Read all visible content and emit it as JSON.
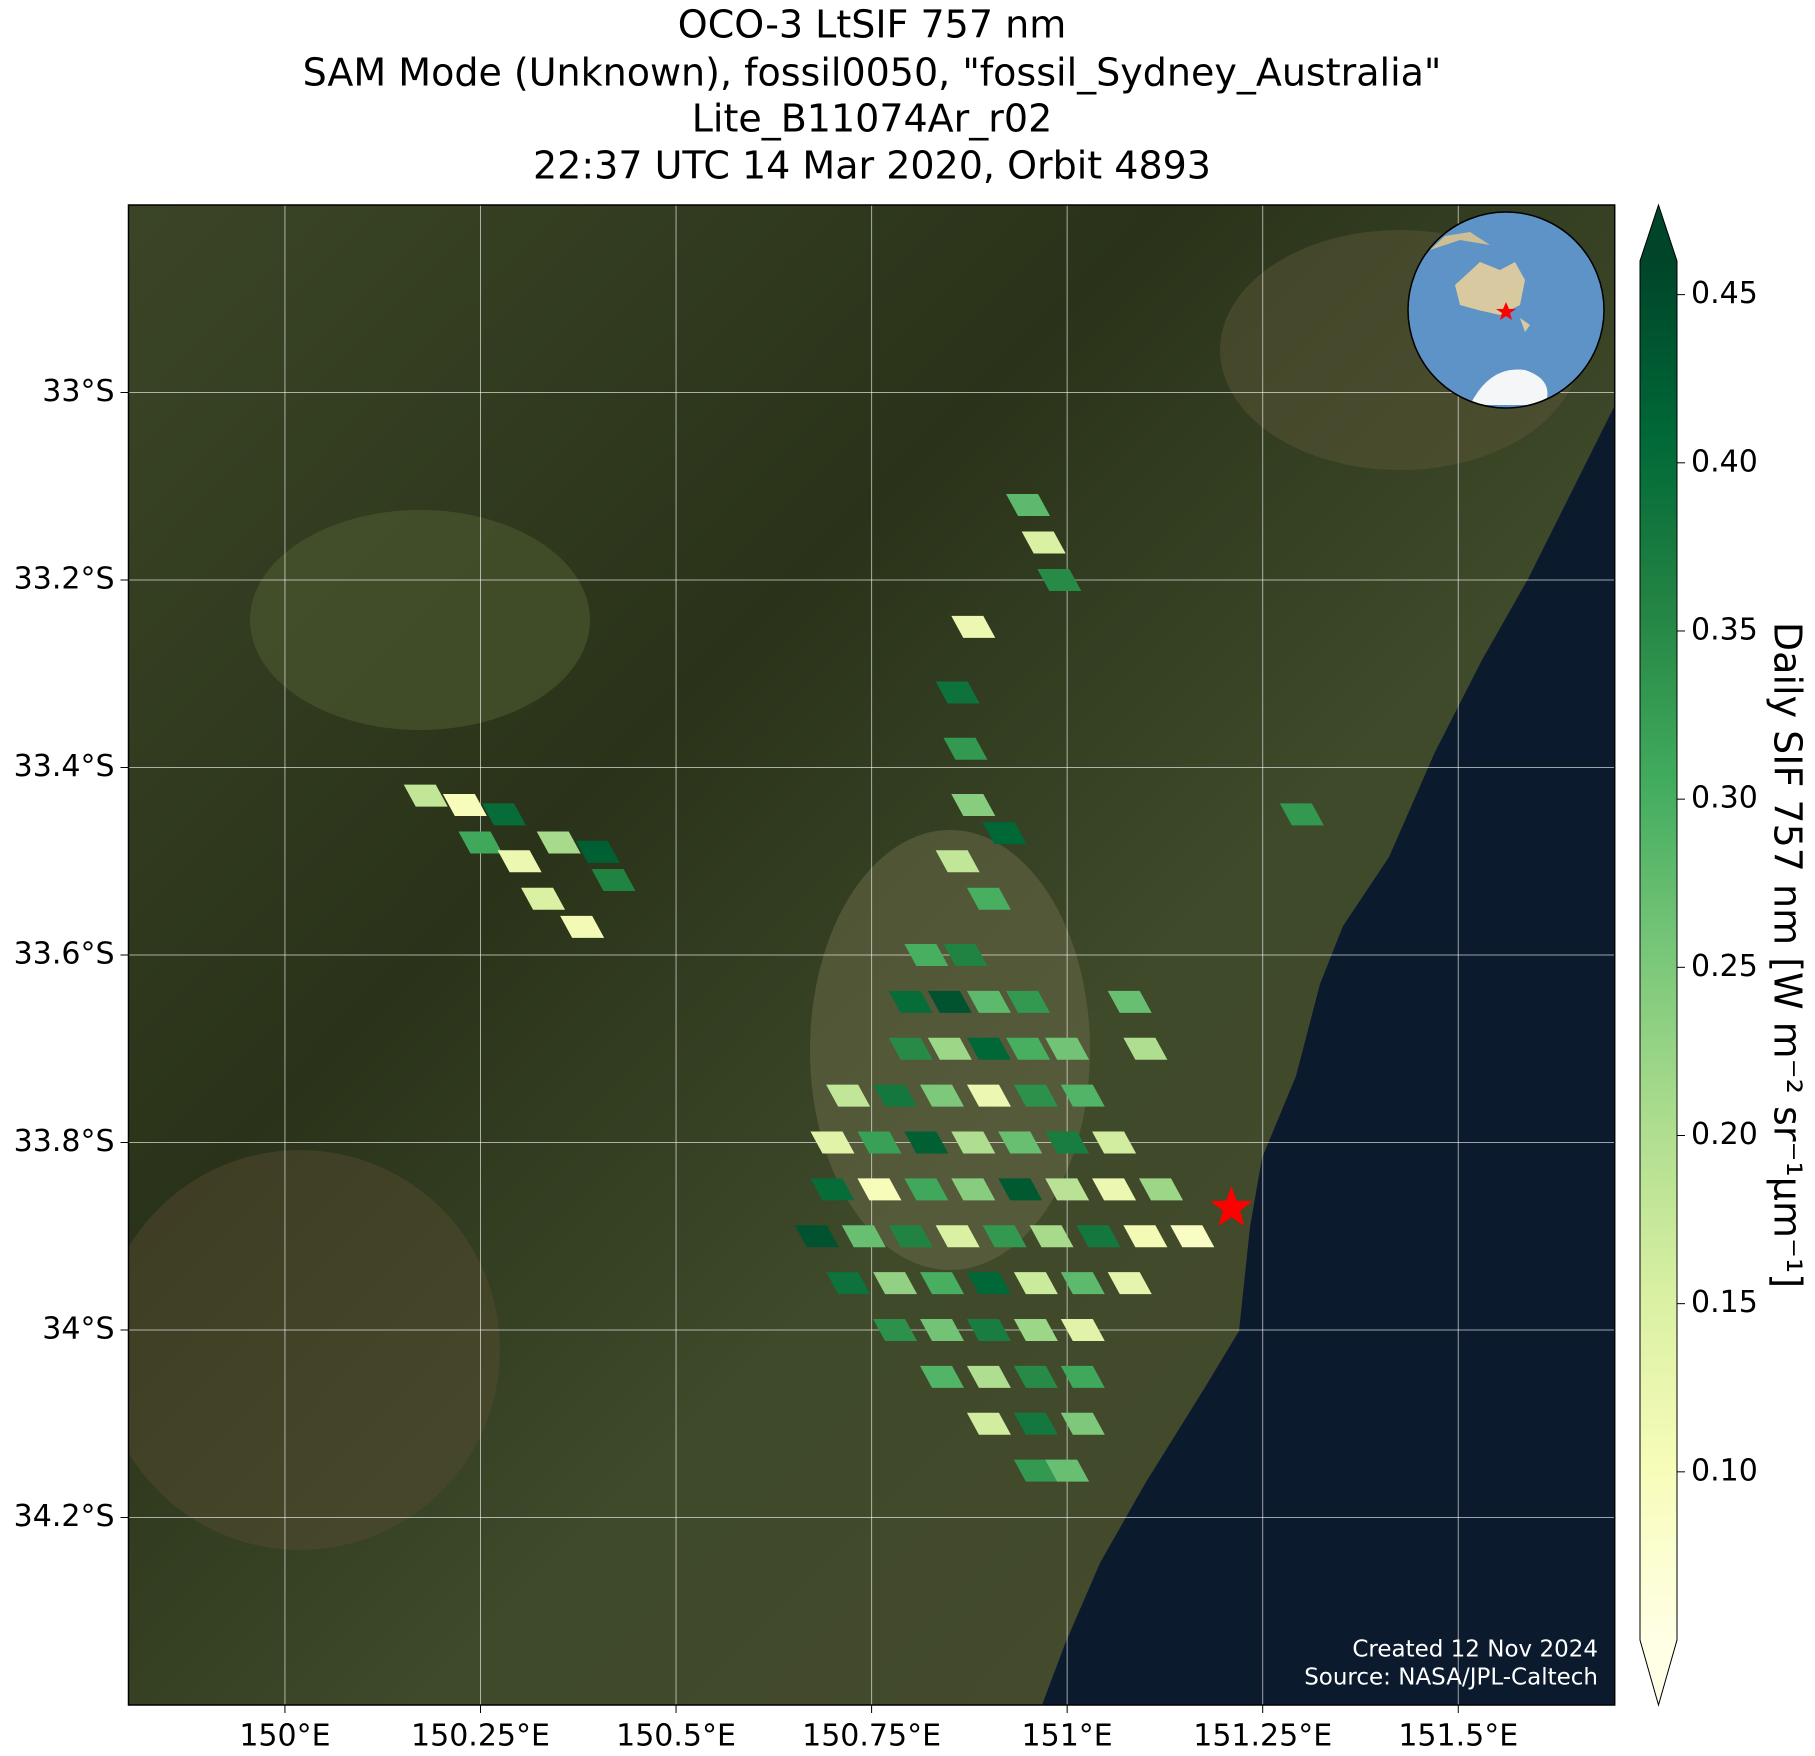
{
  "chart_data": {
    "type": "map",
    "title": [
      "OCO-3 LtSIF 757 nm",
      "SAM Mode (Unknown), fossil0050, \"fossil_Sydney_Australia\"",
      "Lite_B11074Ar_r02",
      "22:37 UTC 14 Mar 2020, Orbit 4893"
    ],
    "xlim": [
      149.8,
      151.7
    ],
    "ylim": [
      -34.4,
      -32.8
    ],
    "xticks": [
      {
        "value": 150,
        "label": "150°E"
      },
      {
        "value": 150.25,
        "label": "150.25°E"
      },
      {
        "value": 150.5,
        "label": "150.5°E"
      },
      {
        "value": 150.75,
        "label": "150.75°E"
      },
      {
        "value": 151,
        "label": "151°E"
      },
      {
        "value": 151.25,
        "label": "151.25°E"
      },
      {
        "value": 151.5,
        "label": "151.5°E"
      }
    ],
    "yticks": [
      {
        "value": -33,
        "label": "33°S"
      },
      {
        "value": -33.2,
        "label": "33.2°S"
      },
      {
        "value": -33.4,
        "label": "33.4°S"
      },
      {
        "value": -33.6,
        "label": "33.6°S"
      },
      {
        "value": -33.8,
        "label": "33.8°S"
      },
      {
        "value": -34,
        "label": "34°S"
      },
      {
        "value": -34.2,
        "label": "34.2°S"
      }
    ],
    "grid": true,
    "colorbar": {
      "label": "Daily SIF 757 nm [W m⁻² sr⁻¹μm⁻¹]",
      "clim": [
        0.05,
        0.46
      ],
      "ticks": [
        {
          "value": 0.1,
          "label": "0.10"
        },
        0.15,
        {
          "value": 0.2,
          "label": "0.20"
        },
        0.25,
        {
          "value": 0.3,
          "label": "0.30"
        },
        0.35,
        {
          "value": 0.4,
          "label": "0.40"
        },
        0.45
      ],
      "colors": [
        "#ffffe5",
        "#f7fcb9",
        "#d9f0a3",
        "#addd8e",
        "#78c679",
        "#41ab5d",
        "#238443",
        "#006837",
        "#004529"
      ]
    },
    "lon": [
      150.82,
      150.87,
      150.8,
      150.85,
      150.9,
      150.95,
      150.8,
      150.85,
      150.9,
      150.95,
      151.0,
      150.72,
      150.78,
      150.84,
      150.9,
      150.96,
      151.02,
      150.7,
      150.76,
      150.82,
      150.88,
      150.94,
      151.0,
      151.06,
      150.7,
      150.76,
      150.82,
      150.88,
      150.94,
      151.0,
      151.06,
      151.12,
      150.68,
      150.74,
      150.8,
      150.86,
      150.92,
      150.98,
      151.04,
      151.1,
      151.16,
      150.72,
      150.78,
      150.84,
      150.9,
      150.96,
      151.02,
      151.08,
      150.78,
      150.84,
      150.9,
      150.96,
      151.02,
      150.84,
      150.9,
      150.96,
      151.02,
      150.9,
      150.96,
      151.02,
      150.96,
      151.0,
      150.18,
      150.23,
      150.28,
      150.25,
      150.3,
      150.35,
      150.4,
      150.33,
      150.38,
      150.42,
      150.95,
      150.97,
      150.99,
      150.88,
      150.86,
      150.87,
      150.88,
      150.92,
      150.86,
      150.9,
      151.08,
      151.1,
      151.3
    ],
    "lat": [
      -33.6,
      -33.6,
      -33.65,
      -33.65,
      -33.65,
      -33.65,
      -33.7,
      -33.7,
      -33.7,
      -33.7,
      -33.7,
      -33.75,
      -33.75,
      -33.75,
      -33.75,
      -33.75,
      -33.75,
      -33.8,
      -33.8,
      -33.8,
      -33.8,
      -33.8,
      -33.8,
      -33.8,
      -33.85,
      -33.85,
      -33.85,
      -33.85,
      -33.85,
      -33.85,
      -33.85,
      -33.85,
      -33.9,
      -33.9,
      -33.9,
      -33.9,
      -33.9,
      -33.9,
      -33.9,
      -33.9,
      -33.9,
      -33.95,
      -33.95,
      -33.95,
      -33.95,
      -33.95,
      -33.95,
      -33.95,
      -34.0,
      -34.0,
      -34.0,
      -34.0,
      -34.0,
      -34.05,
      -34.05,
      -34.05,
      -34.05,
      -34.1,
      -34.1,
      -34.1,
      -34.15,
      -34.15,
      -33.43,
      -33.44,
      -33.45,
      -33.48,
      -33.5,
      -33.48,
      -33.49,
      -33.54,
      -33.57,
      -33.52,
      -33.12,
      -33.16,
      -33.2,
      -33.25,
      -33.32,
      -33.38,
      -33.44,
      -33.47,
      -33.5,
      -33.54,
      -33.65,
      -33.7,
      -33.45
    ],
    "sif": [
      0.3,
      0.36,
      0.4,
      0.44,
      0.28,
      0.33,
      0.35,
      0.22,
      0.41,
      0.3,
      0.26,
      0.18,
      0.38,
      0.25,
      0.12,
      0.34,
      0.29,
      0.14,
      0.32,
      0.42,
      0.2,
      0.27,
      0.37,
      0.16,
      0.4,
      0.1,
      0.31,
      0.24,
      0.43,
      0.19,
      0.12,
      0.22,
      0.44,
      0.27,
      0.36,
      0.15,
      0.33,
      0.21,
      0.38,
      0.11,
      0.09,
      0.39,
      0.23,
      0.3,
      0.41,
      0.17,
      0.28,
      0.13,
      0.34,
      0.26,
      0.37,
      0.22,
      0.14,
      0.29,
      0.2,
      0.35,
      0.31,
      0.16,
      0.38,
      0.25,
      0.33,
      0.27,
      0.18,
      0.1,
      0.4,
      0.31,
      0.12,
      0.21,
      0.42,
      0.15,
      0.11,
      0.36,
      0.28,
      0.15,
      0.35,
      0.12,
      0.39,
      0.33,
      0.24,
      0.41,
      0.18,
      0.3,
      0.27,
      0.2,
      0.33
    ],
    "site": {
      "lon": 151.21,
      "lat": -33.87,
      "color": "#ff0000"
    },
    "credits": [
      "Created 12 Nov 2024",
      "Source: NASA/JPL-Caltech"
    ]
  }
}
